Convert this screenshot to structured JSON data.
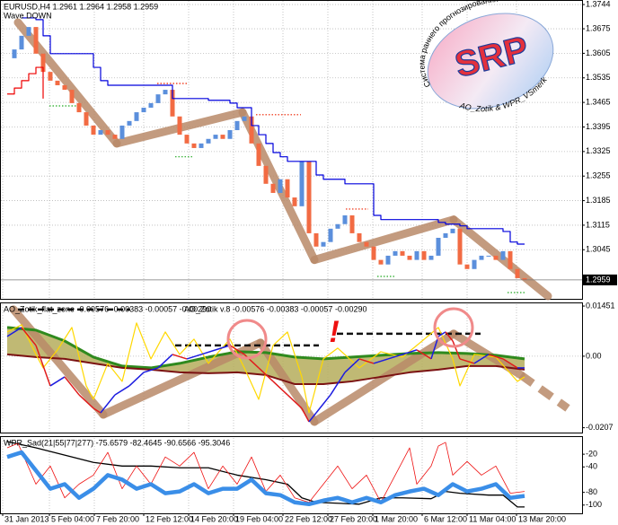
{
  "chart_data": [
    {
      "type": "candlestick",
      "title": "EURUSD,H4  1.2961 1.2964 1.2958 1.2959",
      "subtitle": "Wave DOWN",
      "xlim": [
        -1,
        80
      ],
      "ylim": [
        1.2905,
        1.3757
      ],
      "yticks": [
        1.3744,
        1.3675,
        1.3605,
        1.3535,
        1.3465,
        1.3395,
        1.3325,
        1.3255,
        1.3185,
        1.3115,
        1.3045
      ],
      "grid": true,
      "up_color": "#5b8fdc",
      "down_color": "#f26b43",
      "close": [
        1.3591,
        1.3616,
        1.3655,
        1.368,
        1.3604,
        1.3552,
        1.3527,
        1.3514,
        1.3501,
        1.3463,
        1.3437,
        1.3399,
        1.3373,
        1.3386,
        1.3373,
        1.3361,
        1.3399,
        1.3412,
        1.3437,
        1.345,
        1.3463,
        1.3488,
        1.3501,
        1.3425,
        1.3373,
        1.3348,
        1.3335,
        1.3348,
        1.3361,
        1.3373,
        1.3361,
        1.3386,
        1.3412,
        1.3425,
        1.3348,
        1.3284,
        1.3233,
        1.3207,
        1.3246,
        1.3194,
        1.3169,
        1.3297,
        1.3092,
        1.3054,
        1.3067,
        1.3105,
        1.3118,
        1.3143,
        1.3092,
        1.3067,
        1.3054,
        1.3016,
        1.3003,
        1.3028,
        1.3041,
        1.3028,
        1.3016,
        1.3041,
        1.3016,
        1.3028,
        1.3079,
        1.3092,
        1.3105,
        1.3003,
        1.299,
        1.3016,
        1.3028,
        1.3028,
        1.3016,
        1.3041,
        1.299,
        1.2964,
        1.2959
      ],
      "series": [
        {
          "color": "#0000dd",
          "width": 1.2,
          "step": true,
          "values": [
            null,
            null,
            1.3706,
            1.3706,
            1.3701,
            1.3655,
            1.3604,
            1.3604,
            1.3604,
            1.3604,
            1.3604,
            1.3604,
            1.3565,
            1.3527,
            1.3514,
            1.3514,
            1.3514,
            1.3514,
            1.3514,
            1.3514,
            1.3514,
            1.3514,
            1.3514,
            1.3476,
            1.3476,
            1.3476,
            1.3476,
            1.3476,
            1.3471,
            1.3471,
            1.3471,
            1.3463,
            1.345,
            1.345,
            1.3399,
            1.3373,
            1.3348,
            1.3322,
            1.331,
            1.3297,
            1.3297,
            1.3297,
            1.3297,
            1.3258,
            1.3246,
            1.3246,
            1.3246,
            1.3233,
            1.3233,
            1.3233,
            1.3233,
            1.3143,
            1.3131,
            1.3131,
            1.3131,
            1.3131,
            1.3131,
            1.3131,
            1.3131,
            1.3131,
            1.3123,
            1.3118,
            1.3118,
            1.3113,
            1.3105,
            1.3105,
            1.3105,
            1.3105,
            1.3105,
            1.3097,
            1.3067,
            1.3061,
            1.3061
          ]
        },
        {
          "color": "#ee0000",
          "width": 1.2,
          "step": true,
          "x": [
            0,
            1,
            2,
            3,
            4,
            5
          ],
          "values": [
            1.3489,
            1.3506,
            1.3527,
            1.3547,
            1.3565,
            1.3476
          ]
        }
      ],
      "wave": {
        "color": "#b98a68",
        "x": [
          1.5,
          15.25,
          32.75,
          42.75,
          62.125,
          75.25
        ],
        "values": [
          1.3693,
          1.3348,
          1.3437,
          1.3016,
          1.3131,
          1.2913
        ]
      },
      "levels": [
        {
          "x": [
            20.875,
            25.25
          ],
          "value": 1.3519,
          "color": "#ee2200",
          "style": "dotted"
        },
        {
          "x": [
            34.625,
            40.875
          ],
          "value": 1.343,
          "color": "#ee2200",
          "style": "dotted"
        },
        {
          "x": [
            47.125,
            50.25
          ],
          "value": 1.3161,
          "color": "#ee2200",
          "style": "dotted"
        },
        {
          "x": [
            5.875,
            10.25
          ],
          "value": 1.3455,
          "color": "#22aa22",
          "style": "dotted"
        },
        {
          "x": [
            23.375,
            25.875
          ],
          "value": 1.331,
          "color": "#22aa22",
          "style": "dotted"
        },
        {
          "x": [
            51.5,
            54
          ],
          "value": 1.2969,
          "color": "#22aa22",
          "style": "dotted"
        },
        {
          "x": [
            69.625,
            72.125
          ],
          "value": 1.2923,
          "color": "#22aa22",
          "style": "dotted"
        }
      ],
      "current_price": 1.2959
    },
    {
      "type": "line",
      "titles": [
        "AO_Zotik_flat_zone -0.00576 -0.00383 -0.00057 -0.00290",
        "AO_Zotik v.8 -0.00576 -0.00383 -0.00057 -0.00290"
      ],
      "annotation": "!",
      "xlim": [
        -1,
        80
      ],
      "ylim": [
        -0.0221,
        0.0153
      ],
      "yticks": [
        0.01451,
        {
          "value": 0,
          "label": "0.00"
        },
        -0.0207
      ],
      "band_fill": "#b5ad5c",
      "series": [
        {
          "color": "#2f8a1e",
          "width": 3,
          "x": [
            0,
            4,
            8,
            12,
            16,
            20,
            24,
            28,
            32,
            36,
            40,
            44,
            48,
            52,
            56,
            60,
            64,
            68,
            72
          ],
          "values": [
            0.00832,
            0.00754,
            0.00442,
            -0.00026,
            -0.00286,
            -0.00338,
            -0.00208,
            -0.00026,
            0.0013,
            0.00104,
            -0.00026,
            -0.00078,
            -0.00026,
            0.00026,
            0.00078,
            0.00104,
            0.00078,
            0.00026,
            -0.00078
          ]
        },
        {
          "color": "#7b1212",
          "width": 2,
          "x": [
            0,
            4,
            8,
            12,
            16,
            20,
            24,
            28,
            32,
            36,
            40,
            44,
            48,
            52,
            56,
            60,
            64,
            68,
            72
          ],
          "values": [
            0.00052,
            -0.00026,
            -0.00078,
            -0.00208,
            -0.00338,
            -0.0039,
            -0.00468,
            -0.00494,
            -0.00468,
            -0.00546,
            -0.00806,
            -0.00806,
            -0.00728,
            -0.00598,
            -0.00468,
            -0.0039,
            -0.00286,
            -0.00286,
            -0.0039
          ]
        },
        {
          "color": "#ffd800",
          "width": 1.2,
          "x": [
            0,
            2,
            4,
            5,
            7,
            9,
            11,
            12,
            14,
            16,
            18,
            20,
            22,
            24,
            26,
            28,
            31,
            33,
            35,
            37,
            39,
            41,
            42,
            44,
            46,
            49,
            52,
            55,
            57,
            60,
            62,
            63,
            65,
            68,
            71,
            72
          ],
          "values": [
            0.00702,
            0.0091,
            0.00052,
            -0.00338,
            0.00182,
            0.00832,
            -0.00858,
            -0.01248,
            -0.00208,
            -0.00728,
            0.00962,
            -0.00078,
            0.00702,
            0.00052,
            0.00494,
            -0.00208,
            0.00494,
            -0.00338,
            -0.01248,
            0.00312,
            0.00702,
            -0.00598,
            -0.01638,
            -0.00078,
            0.00234,
            -0.00338,
            0.0013,
            -0.00026,
            0.00312,
            0.00832,
            -0.00078,
            -0.00858,
            0.00052,
            -0.00026,
            -0.00728,
            -0.00598
          ]
        },
        {
          "up_color": "#1c1ce0",
          "down_color": "#e01c1c",
          "width": 1.5,
          "x": [
            0,
            2,
            4,
            6,
            8,
            10,
            12,
            13,
            15,
            17,
            19,
            21,
            23,
            25,
            27,
            29,
            31,
            33,
            35,
            37,
            39,
            41,
            42,
            43,
            45,
            47,
            49,
            51,
            53,
            55,
            57,
            59,
            60,
            61,
            62,
            63,
            65,
            67,
            69,
            71,
            72
          ],
          "values": [
            0.00572,
            0.00832,
            0.00312,
            -0.00858,
            -0.00598,
            -0.01118,
            -0.01508,
            -0.01638,
            -0.01118,
            -0.00858,
            -0.00468,
            -0.00338,
            0.00052,
            -0.00078,
            0.00052,
            0.00182,
            0.00312,
            0.00052,
            -0.00338,
            -0.00728,
            -0.01118,
            -0.01508,
            -0.01898,
            -0.01638,
            -0.01118,
            -0.00468,
            -0.00078,
            -0.00208,
            -0.00078,
            0.00052,
            0.00182,
            -0.00078,
            0.00572,
            0.00702,
            0.00442,
            -0.00078,
            -0.00208,
            0.00052,
            -0.00078,
            -0.00338,
            -0.00338
          ]
        }
      ],
      "wave": {
        "color": "#b98a68",
        "dash_last": true,
        "x": [
          0.875,
          13.375,
          35.25,
          42.75,
          62.125,
          71.5,
          78
        ],
        "values": [
          0.01352,
          -0.0169,
          0.0039,
          -0.01898,
          0.0065,
          -0.00546,
          -0.01508
        ]
      },
      "levels": [
        {
          "x": [
            1.5,
            17.125
          ],
          "value": 0.01352,
          "color": "#111111",
          "style": "dashed"
        },
        {
          "x": [
            23.375,
            43.375
          ],
          "value": 0.00312,
          "color": "#111111",
          "style": "dashed"
        },
        {
          "x": [
            45.875,
            65.875
          ],
          "value": 0.0065,
          "color": "#111111",
          "style": "dashed"
        }
      ]
    },
    {
      "type": "line",
      "titles": [
        "WPR_Sad(21|55|77|277) -75.6579 -82.4645 -90.6566 -95.3046"
      ],
      "xlim": [
        -1,
        80
      ],
      "ylim": [
        -113,
        7
      ],
      "yticks": [
        -20,
        -40,
        -80,
        -100
      ],
      "xticks": [
        {
          "value": -0.625,
          "label": "31 Jan 2013"
        },
        {
          "value": 5.875,
          "label": "5 Feb 04:00"
        },
        {
          "value": 12.125,
          "label": "7 Feb 20:00"
        },
        {
          "value": 19,
          "label": "12 Feb 12:00"
        },
        {
          "value": 25.25,
          "label": "14 Feb 20:00"
        },
        {
          "value": 31.5,
          "label": "19 Feb 04:00"
        },
        {
          "value": 38.375,
          "label": "22 Feb 12:00"
        },
        {
          "value": 44.625,
          "label": "27 Feb 20:00"
        },
        {
          "value": 50.875,
          "label": "1 Mar 20:00"
        },
        {
          "value": 57.75,
          "label": "6 Mar 12:00"
        },
        {
          "value": 64,
          "label": "11 Mar 04:00"
        },
        {
          "value": 70.875,
          "label": "13 Mar 20:00"
        }
      ],
      "series": [
        {
          "color": "#000000",
          "width": 1.3,
          "x": [
            0,
            4,
            8,
            12,
            16,
            20,
            24,
            28,
            32,
            36,
            39,
            41,
            43,
            49,
            52,
            55,
            59,
            61,
            63,
            67,
            69,
            71,
            72
          ],
          "values": [
            0,
            -10,
            -21.4,
            -32.9,
            -38.6,
            -38.6,
            -41.4,
            -41.4,
            -52.9,
            -60,
            -67.1,
            -88.6,
            -95.7,
            -98.6,
            -88.6,
            -88.6,
            -90,
            -78.6,
            -81.4,
            -84.3,
            -84.3,
            -102.9,
            -102.9
          ]
        },
        {
          "color": "#ee1111",
          "width": 0.8,
          "x": [
            0,
            1.5,
            4,
            6,
            8,
            10,
            12,
            14,
            16,
            18,
            20,
            22,
            24,
            26,
            28,
            30,
            32,
            34,
            36,
            38,
            40,
            42,
            44,
            46,
            48,
            50,
            52,
            54,
            56,
            57,
            59,
            60,
            61,
            62,
            64,
            66,
            68,
            70,
            72
          ],
          "values": [
            -10,
            -2.9,
            -67.1,
            -38.6,
            -88.6,
            -67.1,
            -52.9,
            -17.1,
            -74.3,
            -38.6,
            -67.1,
            -24.3,
            -38.6,
            -17.1,
            -74.3,
            -38.6,
            -67.1,
            -24.3,
            -78.6,
            -52.9,
            -88.6,
            -95.7,
            -67.1,
            -38.6,
            -74.3,
            -52.9,
            -95.7,
            -52.9,
            -10,
            -67.1,
            -38.6,
            -7.1,
            -1.4,
            -52.9,
            -31.4,
            -52.9,
            -38.6,
            -81.4,
            -78.6
          ]
        },
        {
          "color": "#3a8ee8",
          "width": 4.5,
          "x": [
            0,
            2,
            4,
            6,
            8,
            10,
            12,
            14,
            16,
            18,
            20,
            22,
            24,
            26,
            28,
            30,
            32,
            34,
            36,
            38,
            40,
            42,
            44,
            46,
            48,
            50,
            52,
            54,
            56,
            58,
            60,
            62,
            64,
            66,
            68,
            70,
            72
          ],
          "values": [
            -24.3,
            -17.1,
            -45.7,
            -74.3,
            -67.1,
            -88.6,
            -74.3,
            -52.9,
            -60,
            -74.3,
            -67.1,
            -81.4,
            -78.6,
            -67.1,
            -81.4,
            -74.3,
            -74.3,
            -60,
            -81.4,
            -84.3,
            -95.7,
            -98.6,
            -92.9,
            -88.6,
            -95.7,
            -88.6,
            -95.7,
            -84.3,
            -78.6,
            -74.3,
            -84.3,
            -67.1,
            -78.6,
            -74.3,
            -67.1,
            -88.6,
            -85.7
          ]
        }
      ]
    }
  ],
  "logo": {
    "text": "SRP",
    "top_arc": "Система раннего прогнозирования",
    "bottom_arc": "AO_Zotik & WPR_VSmerk"
  }
}
